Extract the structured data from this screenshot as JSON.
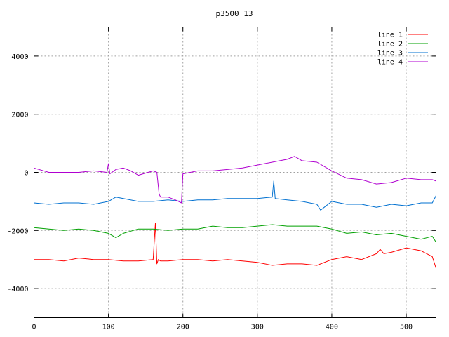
{
  "chart_data": {
    "type": "line",
    "title": "p3500_13",
    "xlabel": "",
    "ylabel": "",
    "xlim": [
      0,
      540
    ],
    "ylim": [
      -5000,
      5000
    ],
    "xticks": [
      0,
      100,
      200,
      300,
      400,
      500
    ],
    "yticks": [
      -4000,
      -2000,
      0,
      2000,
      4000
    ],
    "grid": true,
    "legend_position": "top-right",
    "colors": [
      "#ff0000",
      "#00a000",
      "#0070d0",
      "#b000d0"
    ],
    "series": [
      {
        "name": "line 1",
        "color": "#ff0000",
        "x": [
          0,
          20,
          40,
          60,
          80,
          100,
          120,
          140,
          160,
          163,
          165,
          167,
          170,
          180,
          200,
          220,
          240,
          260,
          280,
          300,
          320,
          340,
          360,
          380,
          400,
          420,
          440,
          460,
          465,
          470,
          480,
          500,
          520,
          535,
          540
        ],
        "values": [
          -3000,
          -3000,
          -3050,
          -2950,
          -3000,
          -3000,
          -3050,
          -3050,
          -3000,
          -1750,
          -3150,
          -3000,
          -3050,
          -3050,
          -3000,
          -3000,
          -3050,
          -3000,
          -3050,
          -3100,
          -3200,
          -3150,
          -3150,
          -3200,
          -3000,
          -2900,
          -3000,
          -2800,
          -2650,
          -2800,
          -2750,
          -2600,
          -2700,
          -2900,
          -3300
        ]
      },
      {
        "name": "line 2",
        "color": "#00a000",
        "x": [
          0,
          20,
          40,
          60,
          80,
          100,
          110,
          120,
          140,
          160,
          180,
          200,
          220,
          240,
          260,
          280,
          300,
          320,
          340,
          360,
          380,
          400,
          420,
          440,
          460,
          480,
          500,
          520,
          535,
          540
        ],
        "values": [
          -1900,
          -1950,
          -2000,
          -1950,
          -2000,
          -2100,
          -2250,
          -2100,
          -1950,
          -1950,
          -2000,
          -1950,
          -1950,
          -1850,
          -1900,
          -1900,
          -1850,
          -1800,
          -1850,
          -1850,
          -1850,
          -1950,
          -2100,
          -2050,
          -2150,
          -2100,
          -2200,
          -2300,
          -2200,
          -2400
        ]
      },
      {
        "name": "line 3",
        "color": "#0070d0",
        "x": [
          0,
          20,
          40,
          60,
          80,
          100,
          110,
          120,
          140,
          160,
          180,
          200,
          220,
          240,
          260,
          280,
          300,
          320,
          322,
          324,
          340,
          360,
          380,
          385,
          400,
          420,
          440,
          460,
          480,
          500,
          520,
          535,
          540
        ],
        "values": [
          -1050,
          -1100,
          -1050,
          -1050,
          -1100,
          -1000,
          -850,
          -900,
          -1000,
          -1000,
          -950,
          -1000,
          -950,
          -950,
          -900,
          -900,
          -900,
          -850,
          -300,
          -900,
          -950,
          -1000,
          -1100,
          -1300,
          -1000,
          -1100,
          -1100,
          -1200,
          -1100,
          -1150,
          -1050,
          -1050,
          -800
        ]
      },
      {
        "name": "line 4",
        "color": "#b000d0",
        "x": [
          0,
          20,
          40,
          60,
          80,
          98,
          100,
          102,
          110,
          120,
          130,
          140,
          160,
          165,
          168,
          170,
          180,
          190,
          198,
          200,
          210,
          220,
          240,
          260,
          280,
          300,
          320,
          340,
          350,
          360,
          380,
          400,
          420,
          440,
          460,
          480,
          500,
          520,
          535,
          540
        ],
        "values": [
          150,
          0,
          0,
          0,
          50,
          0,
          300,
          -50,
          100,
          150,
          50,
          -100,
          50,
          0,
          -750,
          -850,
          -850,
          -950,
          -1050,
          -50,
          0,
          50,
          50,
          100,
          150,
          250,
          350,
          450,
          550,
          400,
          350,
          50,
          -200,
          -250,
          -400,
          -350,
          -200,
          -250,
          -250,
          -300
        ]
      }
    ]
  }
}
